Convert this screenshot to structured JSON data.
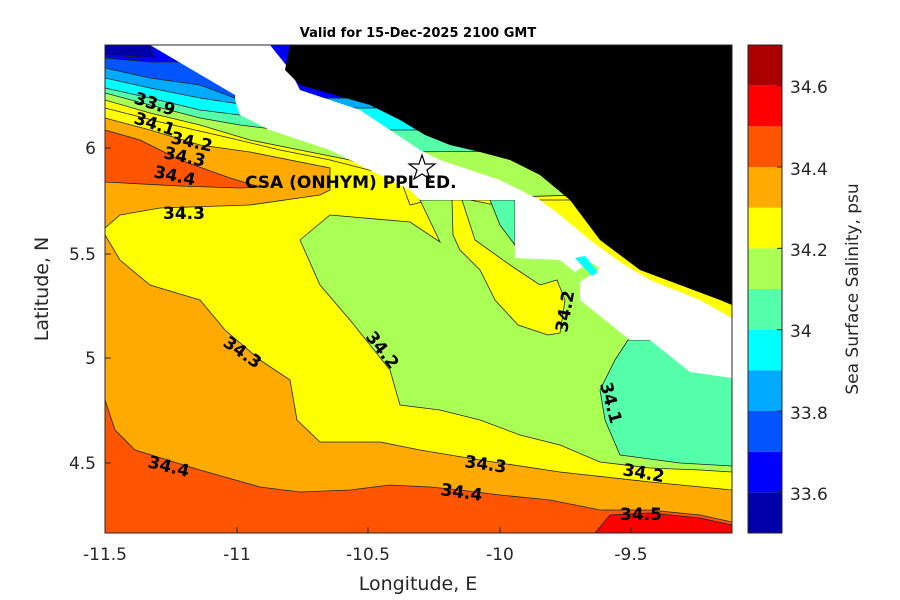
{
  "chart_data": {
    "type": "heatmap",
    "subtype": "filled-contour-map",
    "title": "Valid for 15-Dec-2025 2100 GMT",
    "xlabel": "Longitude, E",
    "ylabel": "Latitude, N",
    "xlim": [
      -11.5,
      -9.12
    ],
    "ylim": [
      4.17,
      6.49
    ],
    "xticks": [
      "-11.5",
      "-11",
      "-10.5",
      "-10",
      "-9.5"
    ],
    "yticks": [
      "4.5",
      "5",
      "5.5",
      "6"
    ],
    "colorbar": {
      "label": "Sea Surface Salinity, psu",
      "range": [
        33.5,
        34.7
      ],
      "ticks": [
        "33.6",
        "33.8",
        "34",
        "34.2",
        "34.4",
        "34.6"
      ],
      "levels": [
        33.5,
        33.6,
        33.7,
        33.8,
        33.9,
        34.0,
        34.1,
        34.2,
        34.3,
        34.4,
        34.5,
        34.6,
        34.7
      ],
      "colors": [
        "#0000aa",
        "#0000ff",
        "#0055ff",
        "#00aaff",
        "#00ffff",
        "#55ffaa",
        "#aaff55",
        "#ffff00",
        "#ffaa00",
        "#ff5500",
        "#ff0000",
        "#aa0000"
      ]
    },
    "contour_labels": [
      "33.9",
      "34.1",
      "34.2",
      "34.3",
      "34.4",
      "34.3",
      "34.3",
      "34.2",
      "34.2",
      "34.1",
      "34.4",
      "34.3",
      "34.4",
      "34.2",
      "34.5"
    ],
    "annotation": {
      "marker": "star",
      "text": "CSA (ONHYM) PPL ED."
    },
    "land_color": "#000000"
  }
}
